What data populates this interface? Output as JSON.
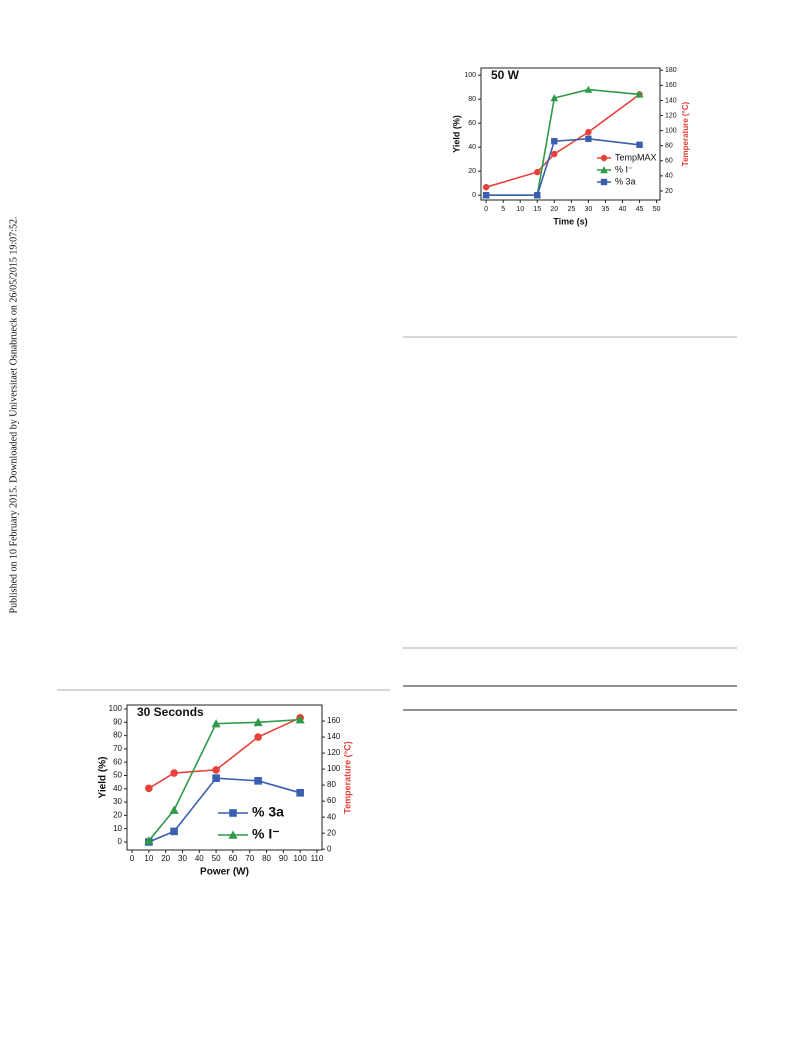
{
  "side_note": "Published on 10 February 2015. Downloaded by Universitaet Osnabrueck on 26/05/2015 19:07:52.",
  "chart_data": [
    {
      "type": "line",
      "title": "50 W",
      "x_label": "Time (s)",
      "y_label": "Yield (%)",
      "y2_label": "Temperature (°C)",
      "y2_label_color": "#e8413a",
      "x": [
        0,
        15,
        20,
        30,
        45
      ],
      "xlim": [
        -1.5,
        51
      ],
      "xticks": [
        0,
        5,
        10,
        15,
        20,
        25,
        30,
        35,
        40,
        45,
        50
      ],
      "ylim": [
        -4,
        106
      ],
      "yticks": [
        0,
        20,
        40,
        60,
        80,
        100
      ],
      "y2lim": [
        8,
        183
      ],
      "y2ticks": [
        20,
        40,
        60,
        80,
        100,
        120,
        140,
        160,
        180
      ],
      "series": [
        {
          "name": "TempMAX",
          "color": "#e8413a",
          "marker": "circle",
          "axis": "y2",
          "values": [
            25,
            45,
            69,
            98,
            148
          ]
        },
        {
          "name": "% I⁻",
          "color": "#2e9a48",
          "marker": "triangle",
          "values": [
            0,
            0,
            81,
            88,
            84
          ]
        },
        {
          "name": "% 3a",
          "color": "#3a5fb0",
          "marker": "square",
          "values": [
            0,
            0,
            45,
            47,
            42
          ]
        }
      ]
    },
    {
      "type": "line",
      "title": "30 Seconds",
      "x_label": "Power (W)",
      "y_label": "Yield (%)",
      "y2_label": "Temperature (°C)",
      "y2_label_color": "#e8413a",
      "x": [
        10,
        25,
        50,
        75,
        100
      ],
      "xlim": [
        -3,
        113
      ],
      "xticks": [
        0,
        10,
        20,
        30,
        40,
        50,
        60,
        70,
        80,
        90,
        100,
        110
      ],
      "ylim": [
        -6,
        103
      ],
      "yticks": [
        0,
        10,
        20,
        30,
        40,
        50,
        60,
        70,
        80,
        90,
        100
      ],
      "y2lim": [
        -1,
        180
      ],
      "y2ticks": [
        0,
        20,
        40,
        60,
        80,
        100,
        120,
        140,
        160
      ],
      "series": [
        {
          "color": "#e8413a",
          "marker": "circle",
          "axis": "y2",
          "values": [
            76,
            95,
            99,
            140,
            164
          ]
        },
        {
          "name": "% 3a",
          "color": "#3a5fb0",
          "marker": "square",
          "values": [
            0,
            8,
            48,
            46,
            37
          ]
        },
        {
          "name": "% I⁻",
          "color": "#2e9a48",
          "marker": "triangle",
          "values": [
            1,
            24,
            89,
            90,
            92
          ]
        }
      ]
    }
  ]
}
